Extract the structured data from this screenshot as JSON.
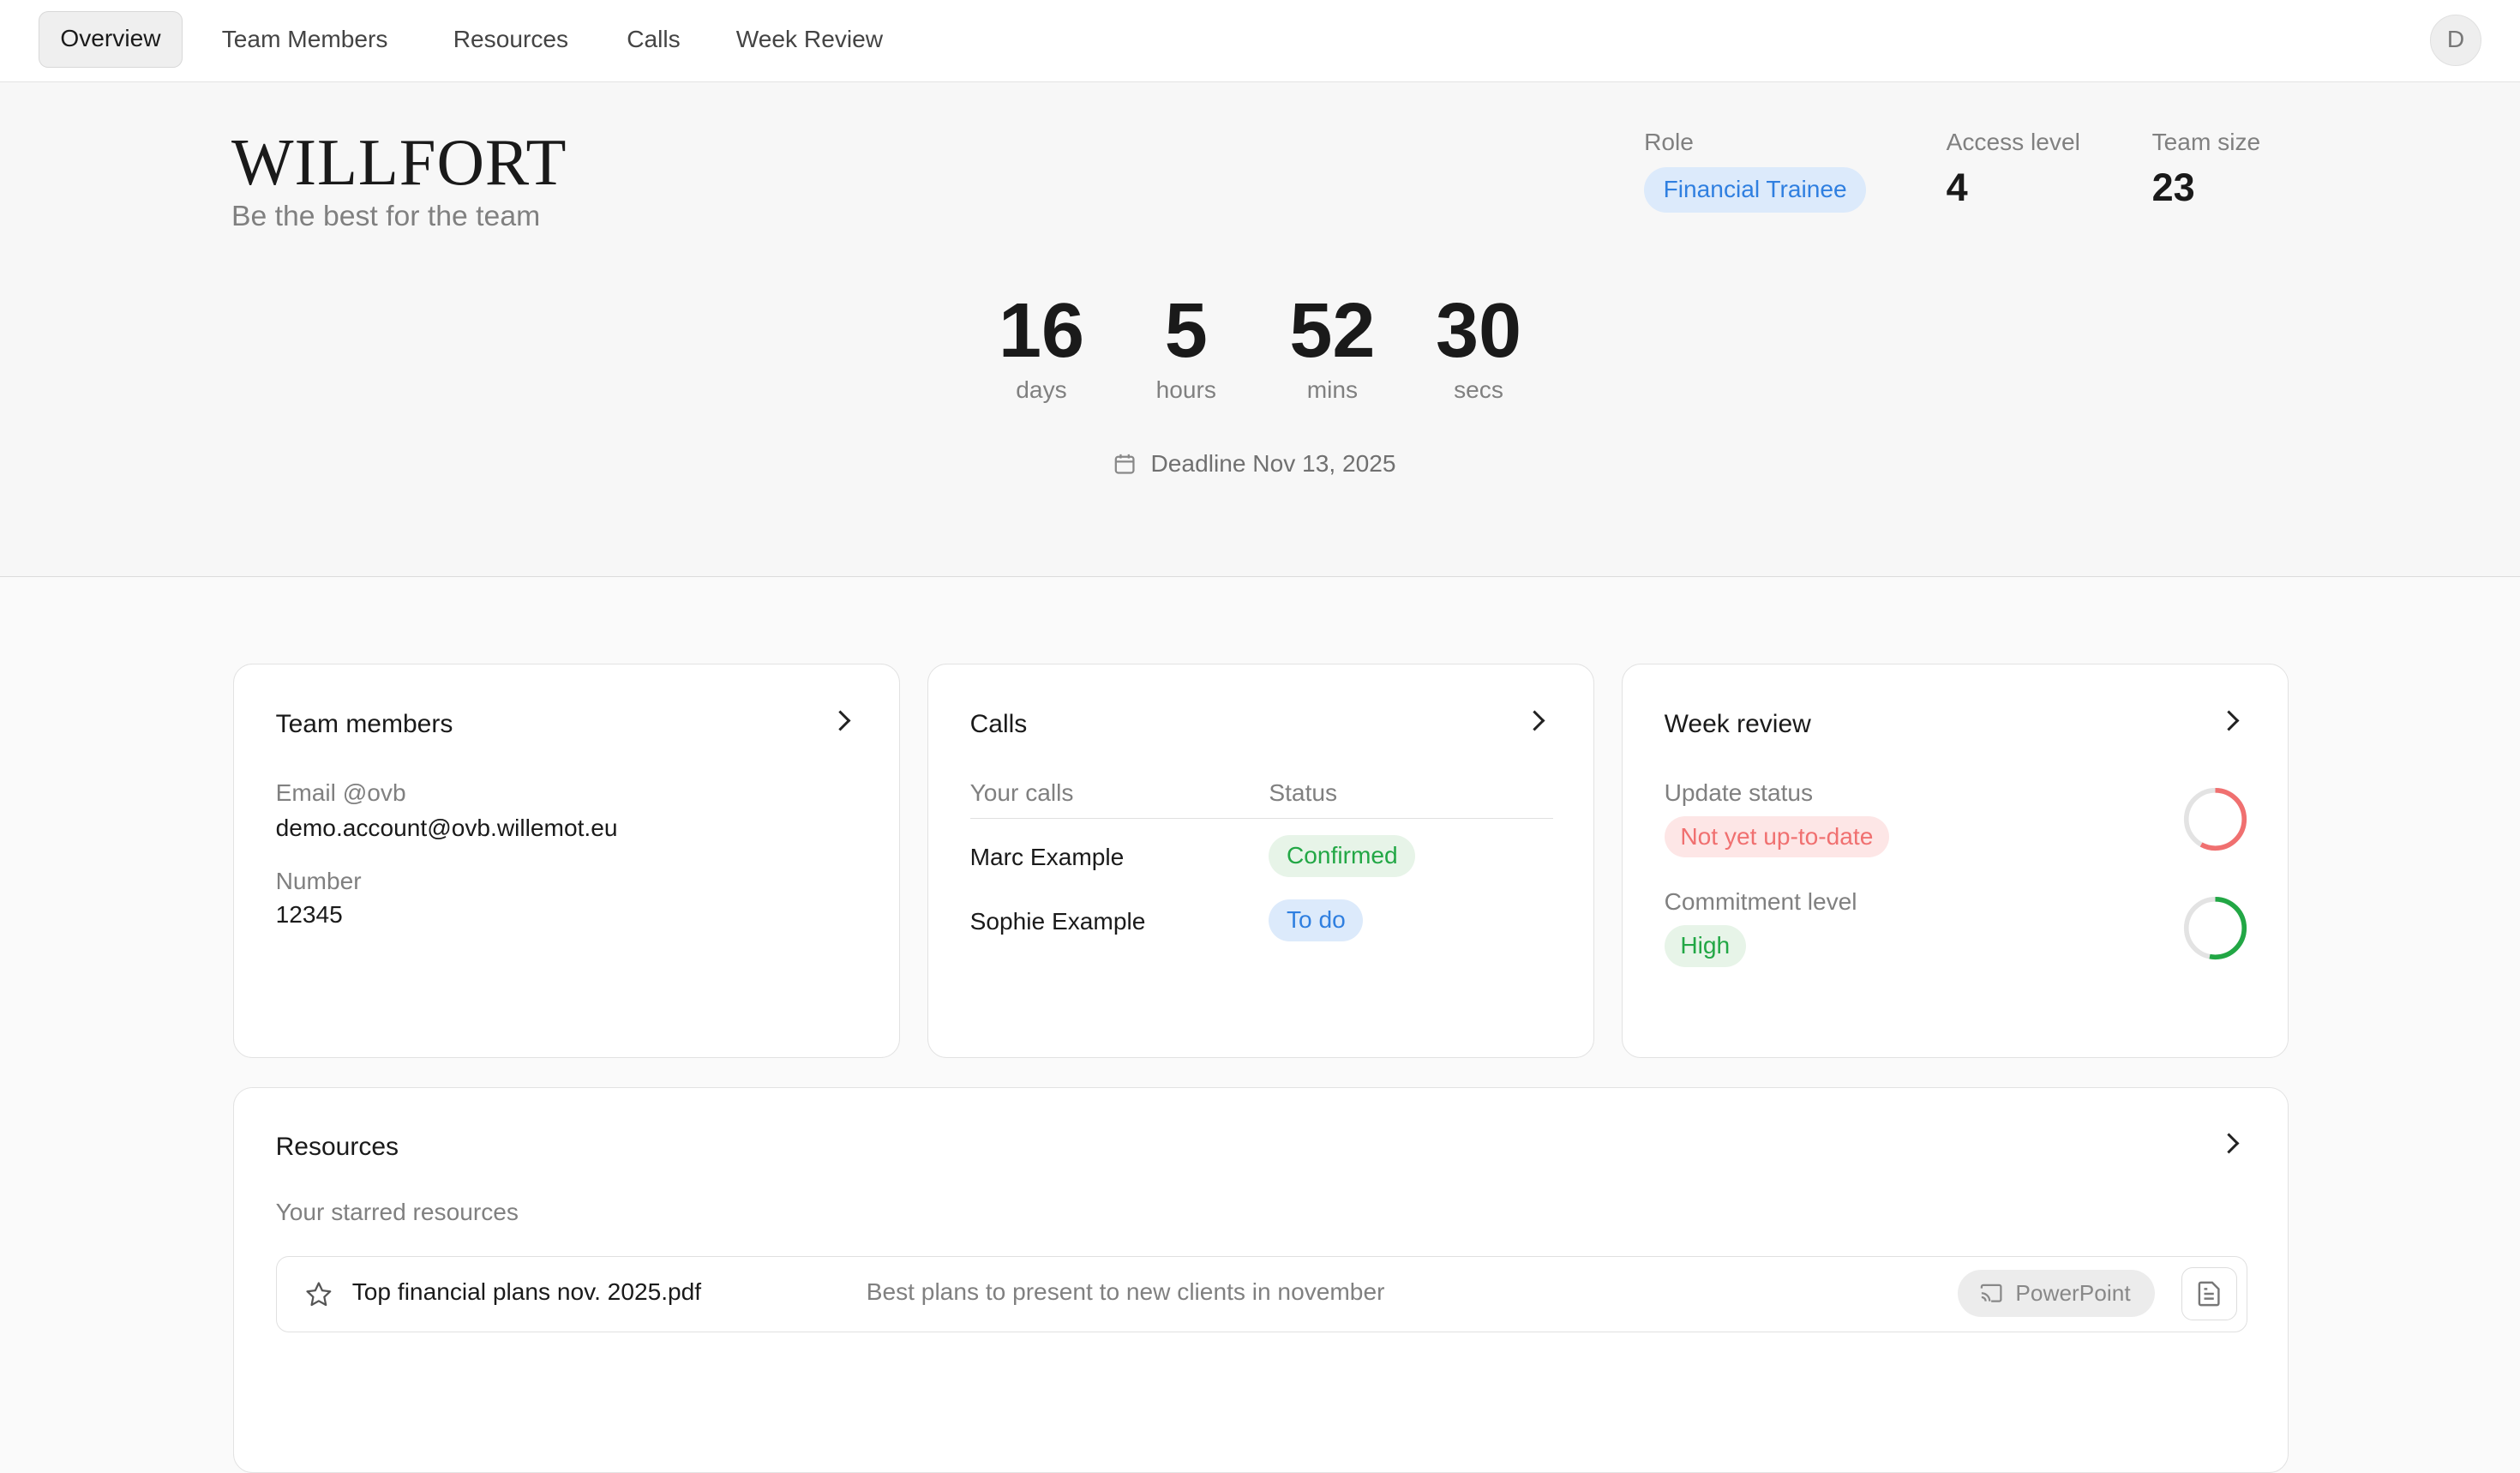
{
  "nav": {
    "tabs": [
      "Overview",
      "Team Members",
      "Resources",
      "Calls",
      "Week Review"
    ],
    "active": "Overview",
    "avatar": "D"
  },
  "header": {
    "title": "WILLFORT",
    "subtitle": "Be the best for the team",
    "role_label": "Role",
    "role": "Financial Trainee",
    "access_label": "Access level",
    "access": "4",
    "team_label": "Team size",
    "team": "23"
  },
  "countdown": {
    "days": "16",
    "days_label": "days",
    "hours": "5",
    "hours_label": "hours",
    "mins": "52",
    "mins_label": "mins",
    "secs": "30",
    "secs_label": "secs",
    "deadline": "Deadline Nov 13, 2025"
  },
  "team_card": {
    "title": "Team members",
    "email_label": "Email @ovb",
    "email": "demo.account@ovb.willemot.eu",
    "number_label": "Number",
    "number": "12345"
  },
  "calls_card": {
    "title": "Calls",
    "col1": "Your calls",
    "col2": "Status",
    "rows": [
      {
        "name": "Marc Example",
        "status": "Confirmed"
      },
      {
        "name": "Sophie Example",
        "status": "To do"
      }
    ]
  },
  "week_card": {
    "title": "Week review",
    "update_label": "Update status",
    "update": "Not yet up-to-date",
    "update_progress": 0.58,
    "commit_label": "Commitment level",
    "commit": "High",
    "commit_progress": 0.53
  },
  "resources": {
    "title": "Resources",
    "subtitle": "Your starred resources",
    "items": [
      {
        "name": "Top financial plans nov. 2025.pdf",
        "description": "Best plans to present to new clients in november",
        "type": "PowerPoint"
      }
    ]
  },
  "colors": {
    "blue": "#2f7fe0",
    "green": "#22a745",
    "red": "#f07070"
  }
}
